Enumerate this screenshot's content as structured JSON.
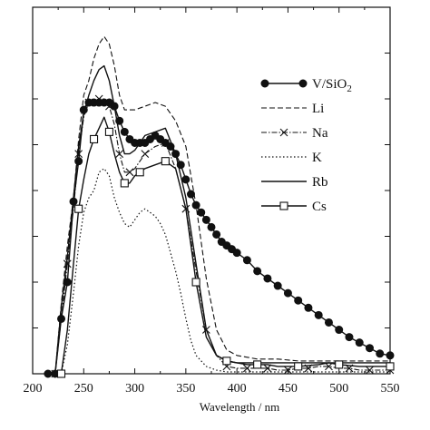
{
  "chart_data": {
    "type": "line",
    "title": "",
    "xlabel": "Wavelength / nm",
    "ylabel": "",
    "xlim": [
      200,
      550
    ],
    "ylim": [
      0,
      1
    ],
    "xticks": [
      200,
      250,
      300,
      350,
      400,
      450,
      500,
      550
    ],
    "y_tick_count": 8,
    "grid": false,
    "legend_position": "top-right",
    "series": [
      {
        "name": "V/SiO2",
        "legend_label": "V/SiO",
        "legend_sub": "2",
        "style": "solid",
        "marker": "filled-circle",
        "color": "#111111",
        "x": [
          215,
          222,
          228,
          234,
          240,
          245,
          250,
          255,
          260,
          265,
          270,
          275,
          280,
          285,
          290,
          295,
          300,
          305,
          310,
          315,
          320,
          325,
          330,
          335,
          340,
          345,
          350,
          355,
          360,
          365,
          370,
          375,
          380,
          385,
          390,
          395,
          400,
          410,
          420,
          430,
          440,
          450,
          460,
          470,
          480,
          490,
          500,
          510,
          520,
          530,
          540,
          550
        ],
        "y": [
          0,
          0,
          0.15,
          0.25,
          0.47,
          0.58,
          0.72,
          0.74,
          0.74,
          0.74,
          0.74,
          0.74,
          0.73,
          0.69,
          0.66,
          0.64,
          0.63,
          0.63,
          0.63,
          0.64,
          0.65,
          0.64,
          0.63,
          0.62,
          0.6,
          0.57,
          0.53,
          0.49,
          0.46,
          0.44,
          0.42,
          0.4,
          0.38,
          0.36,
          0.35,
          0.34,
          0.33,
          0.31,
          0.28,
          0.26,
          0.24,
          0.22,
          0.2,
          0.18,
          0.16,
          0.14,
          0.12,
          0.1,
          0.085,
          0.07,
          0.055,
          0.05
        ]
      },
      {
        "name": "Li",
        "style": "dashed",
        "marker": "none",
        "color": "#111111",
        "x": [
          222,
          228,
          234,
          240,
          245,
          250,
          255,
          260,
          265,
          270,
          275,
          280,
          285,
          290,
          295,
          300,
          310,
          320,
          330,
          340,
          350,
          360,
          370,
          380,
          390,
          400,
          410,
          420,
          440,
          460,
          480,
          500,
          520,
          550
        ],
        "y": [
          0,
          0.19,
          0.35,
          0.48,
          0.64,
          0.76,
          0.8,
          0.86,
          0.9,
          0.92,
          0.9,
          0.84,
          0.76,
          0.72,
          0.72,
          0.72,
          0.73,
          0.74,
          0.73,
          0.69,
          0.62,
          0.46,
          0.26,
          0.12,
          0.065,
          0.05,
          0.045,
          0.04,
          0.04,
          0.035,
          0.035,
          0.035,
          0.035,
          0.035
        ]
      },
      {
        "name": "Na",
        "style": "dashdot",
        "marker": "x",
        "color": "#111111",
        "x": [
          222,
          228,
          234,
          240,
          245,
          250,
          255,
          260,
          265,
          270,
          275,
          280,
          285,
          290,
          295,
          300,
          310,
          320,
          330,
          340,
          350,
          360,
          370,
          380,
          390,
          400,
          410,
          420,
          430,
          440,
          450,
          460,
          470,
          480,
          490,
          500,
          510,
          520,
          530,
          540,
          550
        ],
        "y": [
          0,
          0.15,
          0.3,
          0.45,
          0.6,
          0.7,
          0.74,
          0.74,
          0.75,
          0.75,
          0.73,
          0.68,
          0.6,
          0.55,
          0.55,
          0.56,
          0.6,
          0.62,
          0.63,
          0.56,
          0.45,
          0.28,
          0.12,
          0.05,
          0.02,
          0.015,
          0.015,
          0.015,
          0.015,
          0.01,
          0.01,
          0.015,
          0.015,
          0.02,
          0.02,
          0.015,
          0.015,
          0.01,
          0.01,
          0.01,
          0.01
        ]
      },
      {
        "name": "K",
        "style": "dotted",
        "marker": "none",
        "color": "#111111",
        "x": [
          228,
          234,
          240,
          245,
          250,
          255,
          260,
          265,
          270,
          275,
          280,
          285,
          290,
          295,
          300,
          305,
          310,
          315,
          320,
          325,
          330,
          335,
          340,
          345,
          350,
          355,
          360,
          370,
          380,
          390,
          400,
          420,
          440,
          460,
          480,
          500,
          520,
          550
        ],
        "y": [
          0,
          0.08,
          0.22,
          0.35,
          0.44,
          0.48,
          0.5,
          0.55,
          0.56,
          0.54,
          0.48,
          0.44,
          0.41,
          0.4,
          0.42,
          0.44,
          0.45,
          0.44,
          0.43,
          0.41,
          0.38,
          0.33,
          0.28,
          0.22,
          0.15,
          0.09,
          0.05,
          0.02,
          0.01,
          0.005,
          0.005,
          0.005,
          0.005,
          0.005,
          0.005,
          0.005,
          0.005,
          0.005
        ]
      },
      {
        "name": "Rb",
        "style": "solid",
        "marker": "none",
        "color": "#111111",
        "x": [
          222,
          228,
          234,
          240,
          245,
          250,
          255,
          260,
          265,
          270,
          275,
          280,
          285,
          290,
          295,
          300,
          310,
          320,
          330,
          340,
          350,
          360,
          370,
          380,
          390,
          400,
          410,
          420,
          440,
          460,
          480,
          500,
          520,
          550
        ],
        "y": [
          0,
          0.18,
          0.32,
          0.48,
          0.62,
          0.71,
          0.76,
          0.8,
          0.83,
          0.84,
          0.8,
          0.73,
          0.65,
          0.6,
          0.6,
          0.61,
          0.65,
          0.66,
          0.67,
          0.6,
          0.48,
          0.3,
          0.12,
          0.05,
          0.035,
          0.03,
          0.03,
          0.03,
          0.03,
          0.03,
          0.03,
          0.03,
          0.03,
          0.03
        ]
      },
      {
        "name": "Cs",
        "style": "solid",
        "marker": "open-square",
        "color": "#111111",
        "x": [
          228,
          234,
          240,
          245,
          250,
          255,
          260,
          265,
          270,
          275,
          280,
          285,
          290,
          295,
          300,
          305,
          310,
          320,
          330,
          340,
          350,
          360,
          370,
          380,
          390,
          400,
          410,
          420,
          430,
          440,
          460,
          480,
          490,
          500,
          520,
          540,
          550
        ],
        "y": [
          0,
          0.12,
          0.3,
          0.45,
          0.53,
          0.6,
          0.64,
          0.67,
          0.7,
          0.66,
          0.6,
          0.55,
          0.52,
          0.52,
          0.54,
          0.55,
          0.56,
          0.57,
          0.58,
          0.56,
          0.45,
          0.25,
          0.1,
          0.05,
          0.035,
          0.03,
          0.025,
          0.025,
          0.025,
          0.02,
          0.02,
          0.025,
          0.03,
          0.025,
          0.02,
          0.02,
          0.02
        ]
      }
    ]
  }
}
